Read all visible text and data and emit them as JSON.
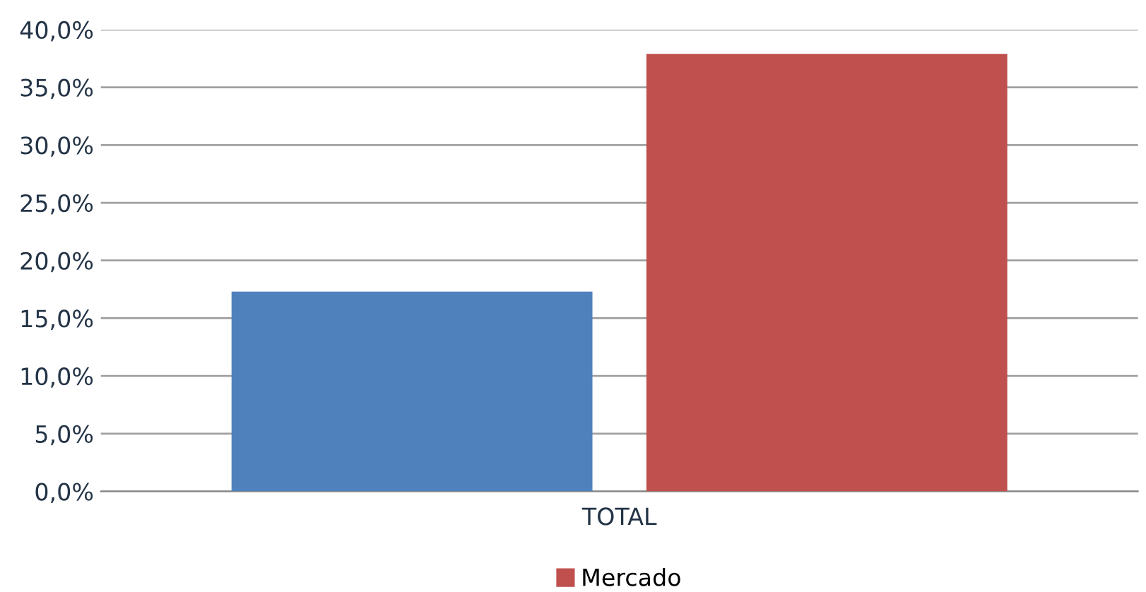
{
  "chart_data": {
    "type": "bar",
    "categories": [
      "TOTAL"
    ],
    "series": [
      {
        "color": "#4f81bd",
        "values": [
          17.3
        ]
      },
      {
        "name": "Mercado",
        "color": "#c0504d",
        "values": [
          37.9
        ]
      }
    ],
    "ylim": [
      0,
      40
    ],
    "yticks": [
      {
        "value": 0,
        "label": "0,0%"
      },
      {
        "value": 5,
        "label": "5,0%"
      },
      {
        "value": 10,
        "label": "10,0%"
      },
      {
        "value": 15,
        "label": "15,0%"
      },
      {
        "value": 20,
        "label": "20,0%"
      },
      {
        "value": 25,
        "label": "25,0%"
      },
      {
        "value": 30,
        "label": "30,0%"
      },
      {
        "value": 35,
        "label": "35,0%"
      },
      {
        "value": 40,
        "label": "40,0%"
      }
    ],
    "grid": "y",
    "legend": "bottom"
  }
}
